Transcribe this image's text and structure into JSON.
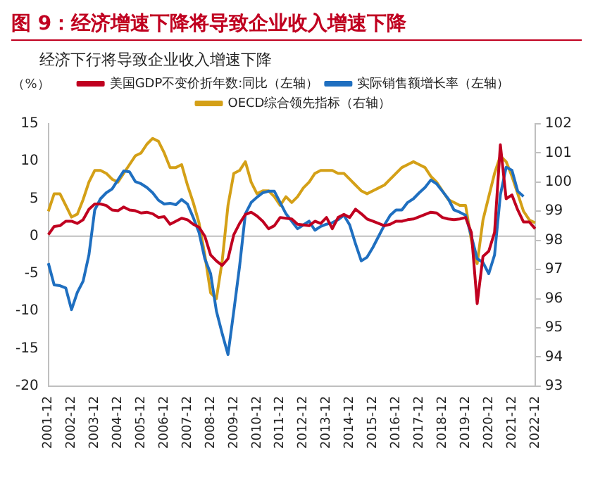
{
  "chart_data": {
    "type": "line",
    "title": "图 9：经济增速下降将导致企业收入增速下降",
    "subtitle": "经济下行将导致企业收入增速下降",
    "ylabel": "（%）",
    "categories": [
      "2001-12",
      null,
      null,
      null,
      "2002-12",
      null,
      null,
      null,
      "2003-12",
      null,
      null,
      null,
      "2004-12",
      null,
      null,
      null,
      "2005-12",
      null,
      null,
      null,
      "2006-12",
      null,
      null,
      null,
      "2007-12",
      null,
      null,
      null,
      "2008-12",
      null,
      null,
      null,
      "2009-12",
      null,
      null,
      null,
      "2010-12",
      null,
      null,
      null,
      "2011-12",
      null,
      null,
      null,
      "2012-12",
      null,
      null,
      null,
      "2013-12",
      null,
      null,
      null,
      "2014-12",
      null,
      null,
      null,
      "2015-12",
      null,
      null,
      null,
      "2016-12",
      null,
      null,
      null,
      "2017-12",
      null,
      null,
      null,
      "2018-12",
      null,
      null,
      null,
      "2019-12",
      null,
      null,
      null,
      "2020-12",
      null,
      null,
      null,
      "2021-12",
      null,
      null,
      null,
      "2022-12"
    ],
    "series": [
      {
        "name": "美国GDP不变价折年数:同比（左轴）",
        "color": "#c00020",
        "values": [
          0.2,
          1.3,
          1.4,
          2.0,
          2.0,
          1.7,
          2.2,
          3.6,
          4.3,
          4.3,
          4.1,
          3.5,
          3.4,
          3.9,
          3.5,
          3.4,
          3.1,
          3.2,
          3.0,
          2.5,
          2.6,
          1.6,
          2.0,
          2.4,
          2.2,
          1.6,
          1.2,
          0.0,
          -2.5,
          -3.3,
          -3.9,
          -3.0,
          0.2,
          1.7,
          2.9,
          3.2,
          2.7,
          2.0,
          1.0,
          1.4,
          2.5,
          2.4,
          2.3,
          1.6,
          1.5,
          1.4,
          2.0,
          1.7,
          2.5,
          1.0,
          2.5,
          2.9,
          2.5,
          3.6,
          3.0,
          2.3,
          2.0,
          1.7,
          1.4,
          1.6,
          2.0,
          2.0,
          2.2,
          2.3,
          2.6,
          2.9,
          3.2,
          3.1,
          2.5,
          2.3,
          2.2,
          2.3,
          2.5,
          0.5,
          -9.0,
          -2.7,
          -2.0,
          0.5,
          12.2,
          5.0,
          5.5,
          3.5,
          1.9,
          1.9,
          1.0
        ]
      },
      {
        "name": "实际销售额增长率（左轴）",
        "color": "#1f6fc0",
        "values": [
          -3.6,
          -6.5,
          -6.6,
          -6.9,
          -9.8,
          -7.5,
          -6.0,
          -2.5,
          3.5,
          5.0,
          5.8,
          6.3,
          7.5,
          8.7,
          8.6,
          7.3,
          7.0,
          6.5,
          5.8,
          4.8,
          4.3,
          4.4,
          4.2,
          4.9,
          4.3,
          2.5,
          0.5,
          -3.0,
          -5.0,
          -10.0,
          -13.0,
          -15.8,
          -10.0,
          -4.0,
          3.0,
          4.5,
          5.2,
          5.8,
          6.0,
          6.0,
          4.5,
          3.0,
          2.0,
          1.0,
          1.5,
          2.0,
          0.8,
          1.3,
          1.6,
          1.8,
          2.2,
          2.8,
          1.5,
          -1.0,
          -3.3,
          -2.8,
          -1.5,
          0.0,
          1.5,
          2.8,
          3.5,
          3.5,
          4.5,
          5.0,
          5.8,
          6.5,
          7.5,
          7.0,
          6.0,
          5.0,
          3.5,
          3.2,
          2.8,
          0.0,
          -3.0,
          -3.5,
          -5.0,
          -2.5,
          5.5,
          9.2,
          8.8,
          6.0,
          5.3,
          null,
          null
        ]
      },
      {
        "name": "OECD综合领先指标（右轴）",
        "color": "#d4a017",
        "axis": "y2",
        "values": [
          99.0,
          99.6,
          99.6,
          99.2,
          98.8,
          98.9,
          99.4,
          100.0,
          100.4,
          100.4,
          100.3,
          100.1,
          100.0,
          100.3,
          100.6,
          100.9,
          101.0,
          101.3,
          101.5,
          101.4,
          101.0,
          100.5,
          100.5,
          100.6,
          99.9,
          99.3,
          98.6,
          97.5,
          96.2,
          96.0,
          97.3,
          99.2,
          100.3,
          100.4,
          100.7,
          100.0,
          99.6,
          99.7,
          99.7,
          99.5,
          99.2,
          99.5,
          99.3,
          99.5,
          99.8,
          100.0,
          100.3,
          100.4,
          100.4,
          100.4,
          100.3,
          100.3,
          100.1,
          99.9,
          99.7,
          99.6,
          99.7,
          99.8,
          99.9,
          100.1,
          100.3,
          100.5,
          100.6,
          100.7,
          100.6,
          100.5,
          100.2,
          100.0,
          99.7,
          99.4,
          99.3,
          99.2,
          99.2,
          98.0,
          97.2,
          98.7,
          99.5,
          100.3,
          100.9,
          100.7,
          100.2,
          99.6,
          99.0,
          98.7,
          98.6
        ]
      }
    ],
    "ylim": [
      -20,
      15
    ],
    "yticks": [
      -20,
      -15,
      -10,
      -5,
      0,
      5,
      10,
      15
    ],
    "y2lim": [
      93,
      102
    ],
    "y2ticks": [
      93,
      94,
      95,
      96,
      97,
      98,
      99,
      100,
      101,
      102
    ],
    "ref_lines": [
      {
        "axis": "y",
        "value": 0,
        "color": "#bfbfbf"
      }
    ],
    "legend": "top",
    "marker": "none",
    "line_style": "solid"
  }
}
